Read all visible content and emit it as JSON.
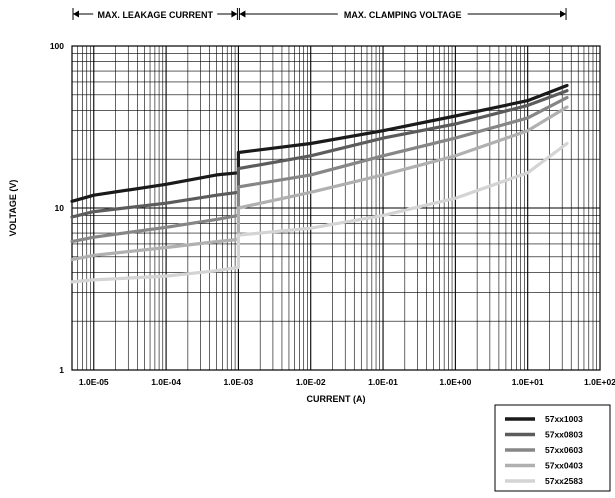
{
  "chart_data": {
    "type": "line",
    "x_scale": "log",
    "y_scale": "log",
    "xlim": [
      5e-06,
      100
    ],
    "ylim": [
      1,
      100
    ],
    "xlabel": "CURRENT (A)",
    "ylabel": "VOLTAGE (V)",
    "x_tick_labels": [
      {
        "value": 1e-05,
        "label": "1.0E-05"
      },
      {
        "value": 0.0001,
        "label": "1.0E-04"
      },
      {
        "value": 0.001,
        "label": "1.0E-03"
      },
      {
        "value": 0.01,
        "label": "1.0E-02"
      },
      {
        "value": 0.1,
        "label": "1.0E-01"
      },
      {
        "value": 1,
        "label": "1.0E+00"
      },
      {
        "value": 10,
        "label": "1.0E+01"
      },
      {
        "value": 100,
        "label": "1.0E+02"
      }
    ],
    "y_tick_labels": [
      {
        "value": 1,
        "label": "1"
      },
      {
        "value": 10,
        "label": "10"
      },
      {
        "value": 100,
        "label": "100"
      }
    ],
    "regions": [
      {
        "label": "MAX. LEAKAGE CURRENT",
        "x_range": [
          5e-06,
          0.001
        ]
      },
      {
        "label": "MAX. CLAMPING VOLTAGE",
        "x_range": [
          0.001,
          35
        ]
      }
    ],
    "grid": true,
    "legend_position": "bottom-right",
    "series": [
      {
        "name": "57xx1003",
        "color": "#1a1a1a",
        "x": [
          5e-06,
          1e-05,
          0.0001,
          0.0005,
          0.001,
          0.001,
          0.01,
          0.1,
          1,
          10,
          35
        ],
        "y": [
          11,
          12,
          14,
          16,
          16.5,
          22,
          25,
          30,
          37,
          46,
          57
        ]
      },
      {
        "name": "57xx0803",
        "color": "#5c5c5c",
        "x": [
          5e-06,
          1e-05,
          0.0001,
          0.0005,
          0.001,
          0.001,
          0.01,
          0.1,
          1,
          10,
          35
        ],
        "y": [
          8.8,
          9.5,
          10.7,
          12,
          12.5,
          17.5,
          21,
          27,
          33,
          43,
          53
        ]
      },
      {
        "name": "57xx0603",
        "color": "#868686",
        "x": [
          5e-06,
          1e-05,
          0.0001,
          0.0005,
          0.001,
          0.001,
          0.01,
          0.1,
          1,
          10,
          35
        ],
        "y": [
          6.2,
          6.6,
          7.6,
          8.5,
          9,
          13.5,
          16,
          21,
          27,
          36,
          48
        ]
      },
      {
        "name": "57xx0403",
        "color": "#b0b0b0",
        "x": [
          5e-06,
          1e-05,
          0.0001,
          0.0005,
          0.001,
          0.001,
          0.01,
          0.1,
          1,
          10,
          35
        ],
        "y": [
          4.8,
          5.1,
          5.7,
          6.2,
          6.4,
          10,
          12.5,
          16,
          21,
          30,
          42
        ]
      },
      {
        "name": "57xx2583",
        "color": "#d4d4d4",
        "x": [
          5e-06,
          1e-05,
          0.0001,
          0.0005,
          0.001,
          0.001,
          0.01,
          0.1,
          1,
          10,
          35
        ],
        "y": [
          3.5,
          3.6,
          3.8,
          4.1,
          4.3,
          6.8,
          7.5,
          9,
          11.5,
          16.5,
          25
        ]
      }
    ]
  }
}
